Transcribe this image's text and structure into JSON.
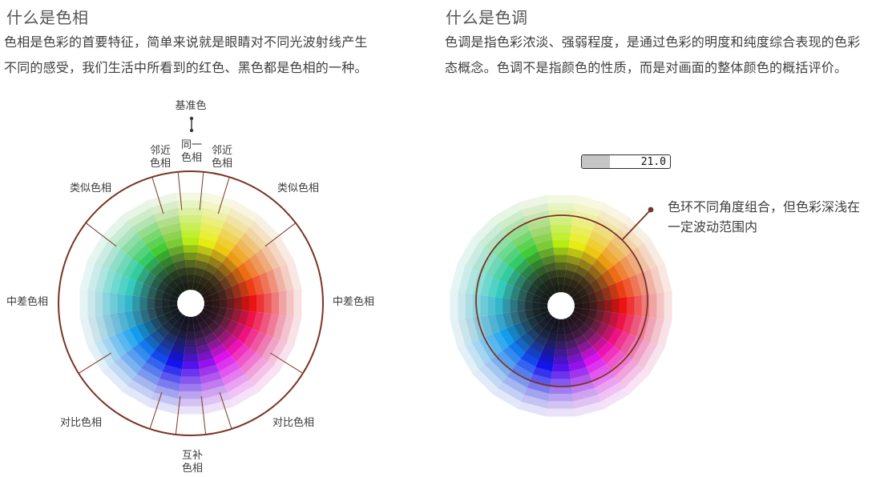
{
  "sections": {
    "hue": {
      "title": "什么是色相",
      "body": "色相是色彩的首要特征，简单来说就是眼睛对不同光波射线产生\n不同的感受，我们生活中所看到的红色、黑色都是色相的一种。"
    },
    "tone": {
      "title": "什么是色调",
      "body": "色调是指色彩浓淡、强弱程度，是通过色彩的明度和纯度综合表现的色彩\n态概念。色调不是指颜色的性质，而是对画面的整体颜色的概括评价。"
    }
  },
  "hue_diagram": {
    "labels": {
      "base_color": "基准色",
      "same_hue": "同一\n色相",
      "adjacent_hue": "邻近\n色相",
      "similar_hue": "类似色相",
      "medium_difference_hue": "中差色相",
      "contrast_hue": "对比色相",
      "complementary_hue": "互补\n色相"
    },
    "border_radius": 165,
    "tick_angles_deg": [
      5.5,
      17,
      52.5,
      122,
      162,
      173.5
    ],
    "tick_inner_radius": 117
  },
  "tone_diagram": {
    "slider": {
      "value": "21.0",
      "fill_percent": 32
    },
    "annotation": "色环不同角度组合，但色彩深浅在\n一定波动范围内",
    "overlay_circle_radius": 107
  },
  "wheel": {
    "sectors": 24,
    "sector_hues": [
      75,
      62,
      50,
      38,
      25,
      12,
      0,
      345,
      330,
      315,
      295,
      275,
      258,
      240,
      225,
      212,
      202,
      195,
      188,
      175,
      162,
      140,
      115,
      92
    ],
    "inner_radius": 17,
    "outer_radius": 139,
    "ring_lightness": [
      10,
      13,
      18,
      26,
      34,
      42,
      50,
      57,
      64,
      71,
      79,
      86,
      93
    ],
    "ring_saturation": [
      25,
      30,
      40,
      55,
      70,
      80,
      85,
      85,
      82,
      78,
      72,
      68,
      62
    ],
    "green_desat": 0.7
  },
  "colors": {
    "accent_maroon": "#7a3526",
    "heading_gray": "#555555",
    "body_gray": "#3e3e3e",
    "label_gray": "#3b3b3b",
    "slider_fill_gray": "#c5c5c5",
    "slider_border": "#2f2f2f",
    "arrow_gray": "#3a3a3a"
  }
}
